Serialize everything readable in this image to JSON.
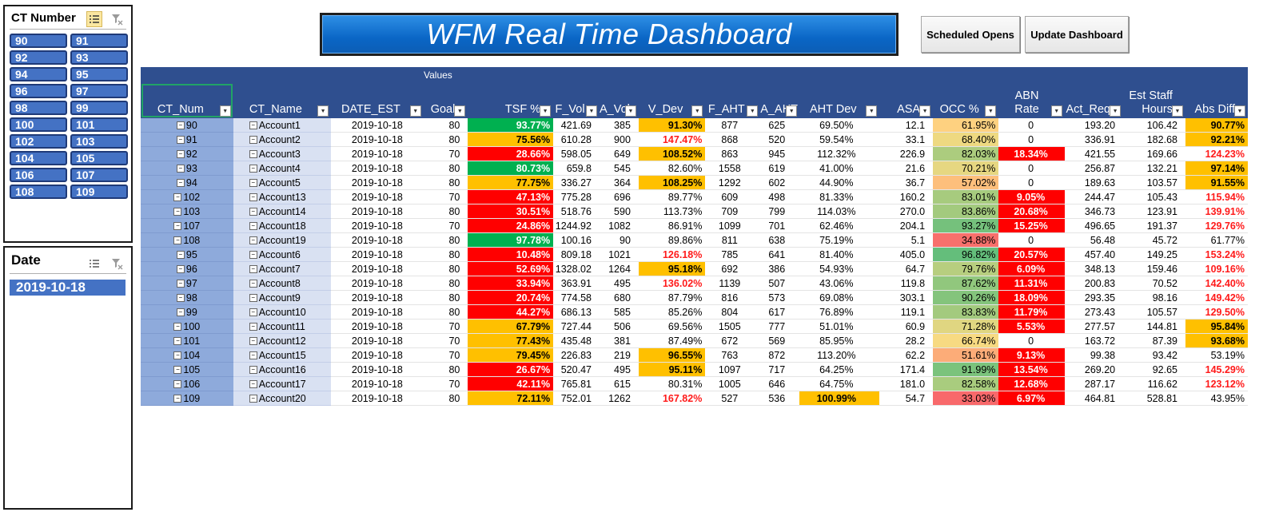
{
  "slicer_ct": {
    "title": "CT Number",
    "items": [
      "90",
      "91",
      "92",
      "93",
      "94",
      "95",
      "96",
      "97",
      "98",
      "99",
      "100",
      "101",
      "102",
      "103",
      "104",
      "105",
      "106",
      "107",
      "108",
      "109"
    ]
  },
  "slicer_date": {
    "title": "Date",
    "items": [
      "2019-10-18"
    ]
  },
  "header": {
    "title": "WFM Real Time Dashboard",
    "btn_scheduled": "Scheduled Opens",
    "btn_update": "Update Dashboard"
  },
  "table": {
    "values_label": "Values",
    "columns": [
      "CT_Num",
      "CT_Name",
      "DATE_EST",
      "Goal",
      "TSF %",
      "F_Vol",
      "A_Vol",
      "V_Dev",
      "F_AHT",
      "A_AHT",
      "AHT Dev",
      "ASA",
      "OCC %",
      "ABN Rate",
      "Act_Req",
      "Est Staff Hours",
      "Abs Diff"
    ],
    "rows": [
      [
        "90",
        "Account1",
        "2019-10-18",
        "80",
        "93.77%",
        "421.69",
        "385",
        "91.30%",
        "877",
        "625",
        "69.50%",
        "12.1",
        "61.95%",
        "0",
        "193.20",
        "106.42",
        "90.77%"
      ],
      [
        "91",
        "Account2",
        "2019-10-18",
        "80",
        "75.56%",
        "610.28",
        "900",
        "147.47%",
        "868",
        "520",
        "59.54%",
        "33.1",
        "68.40%",
        "0",
        "336.91",
        "182.68",
        "92.21%"
      ],
      [
        "92",
        "Account3",
        "2019-10-18",
        "70",
        "28.66%",
        "598.05",
        "649",
        "108.52%",
        "863",
        "945",
        "112.32%",
        "226.9",
        "82.03%",
        "18.34%",
        "421.55",
        "169.66",
        "124.23%"
      ],
      [
        "93",
        "Account4",
        "2019-10-18",
        "80",
        "80.73%",
        "659.8",
        "545",
        "82.60%",
        "1558",
        "619",
        "41.00%",
        "21.6",
        "70.21%",
        "0",
        "256.87",
        "132.21",
        "97.14%"
      ],
      [
        "94",
        "Account5",
        "2019-10-18",
        "80",
        "77.75%",
        "336.27",
        "364",
        "108.25%",
        "1292",
        "602",
        "44.90%",
        "36.7",
        "57.02%",
        "0",
        "189.63",
        "103.57",
        "91.55%"
      ],
      [
        "102",
        "Account13",
        "2019-10-18",
        "70",
        "47.13%",
        "775.28",
        "696",
        "89.77%",
        "609",
        "498",
        "81.33%",
        "160.2",
        "83.01%",
        "9.05%",
        "244.47",
        "105.43",
        "115.94%"
      ],
      [
        "103",
        "Account14",
        "2019-10-18",
        "80",
        "30.51%",
        "518.76",
        "590",
        "113.73%",
        "709",
        "799",
        "114.03%",
        "270.0",
        "83.86%",
        "20.68%",
        "346.73",
        "123.91",
        "139.91%"
      ],
      [
        "107",
        "Account18",
        "2019-10-18",
        "70",
        "24.86%",
        "1244.92",
        "1082",
        "86.91%",
        "1099",
        "701",
        "62.46%",
        "204.1",
        "93.27%",
        "15.25%",
        "496.65",
        "191.37",
        "129.76%"
      ],
      [
        "108",
        "Account19",
        "2019-10-18",
        "80",
        "97.78%",
        "100.16",
        "90",
        "89.86%",
        "811",
        "638",
        "75.19%",
        "5.1",
        "34.88%",
        "0",
        "56.48",
        "45.72",
        "61.77%"
      ],
      [
        "95",
        "Account6",
        "2019-10-18",
        "80",
        "10.48%",
        "809.18",
        "1021",
        "126.18%",
        "785",
        "641",
        "81.40%",
        "405.0",
        "96.82%",
        "20.57%",
        "457.40",
        "149.25",
        "153.24%"
      ],
      [
        "96",
        "Account7",
        "2019-10-18",
        "80",
        "52.69%",
        "1328.02",
        "1264",
        "95.18%",
        "692",
        "386",
        "54.93%",
        "64.7",
        "79.76%",
        "6.09%",
        "348.13",
        "159.46",
        "109.16%"
      ],
      [
        "97",
        "Account8",
        "2019-10-18",
        "80",
        "33.94%",
        "363.91",
        "495",
        "136.02%",
        "1139",
        "507",
        "43.06%",
        "119.8",
        "87.62%",
        "11.31%",
        "200.83",
        "70.52",
        "142.40%"
      ],
      [
        "98",
        "Account9",
        "2019-10-18",
        "80",
        "20.74%",
        "774.58",
        "680",
        "87.79%",
        "816",
        "573",
        "69.08%",
        "303.1",
        "90.26%",
        "18.09%",
        "293.35",
        "98.16",
        "149.42%"
      ],
      [
        "99",
        "Account10",
        "2019-10-18",
        "80",
        "44.27%",
        "686.13",
        "585",
        "85.26%",
        "804",
        "617",
        "76.89%",
        "119.1",
        "83.83%",
        "11.79%",
        "273.43",
        "105.57",
        "129.50%"
      ],
      [
        "100",
        "Account11",
        "2019-10-18",
        "70",
        "67.79%",
        "727.44",
        "506",
        "69.56%",
        "1505",
        "777",
        "51.01%",
        "60.9",
        "71.28%",
        "5.53%",
        "277.57",
        "144.81",
        "95.84%"
      ],
      [
        "101",
        "Account12",
        "2019-10-18",
        "70",
        "77.43%",
        "435.48",
        "381",
        "87.49%",
        "672",
        "569",
        "85.95%",
        "28.2",
        "66.74%",
        "0",
        "163.72",
        "87.39",
        "93.68%"
      ],
      [
        "104",
        "Account15",
        "2019-10-18",
        "70",
        "79.45%",
        "226.83",
        "219",
        "96.55%",
        "763",
        "872",
        "113.20%",
        "62.2",
        "51.61%",
        "9.13%",
        "99.38",
        "93.42",
        "53.19%"
      ],
      [
        "105",
        "Account16",
        "2019-10-18",
        "80",
        "26.67%",
        "520.47",
        "495",
        "95.11%",
        "1097",
        "717",
        "64.25%",
        "171.4",
        "91.99%",
        "13.54%",
        "269.20",
        "92.65",
        "145.29%"
      ],
      [
        "106",
        "Account17",
        "2019-10-18",
        "70",
        "42.11%",
        "765.81",
        "615",
        "80.31%",
        "1005",
        "646",
        "64.75%",
        "181.0",
        "82.58%",
        "12.68%",
        "287.17",
        "116.62",
        "123.12%"
      ],
      [
        "109",
        "Account20",
        "2019-10-18",
        "80",
        "72.11%",
        "752.01",
        "1262",
        "167.82%",
        "527",
        "536",
        "100.99%",
        "54.7",
        "33.03%",
        "6.97%",
        "464.81",
        "528.81",
        "43.95%"
      ]
    ]
  },
  "colors": {
    "header_bg": "#2f4f8f",
    "green": "#00b050",
    "orange": "#ffc000",
    "red_fill": "#ff0000",
    "red_text": "#ff1a1a",
    "slicer_blue": "#4472c4"
  }
}
